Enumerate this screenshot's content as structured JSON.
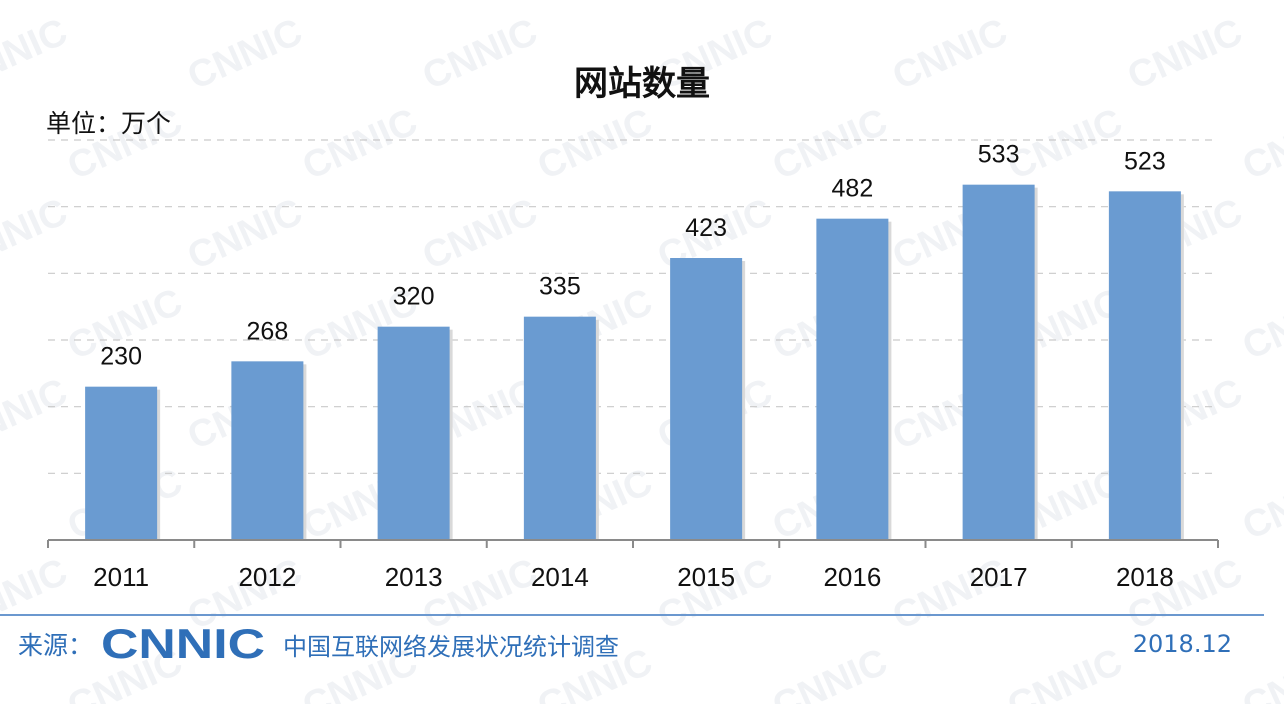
{
  "chart_data": {
    "type": "bar",
    "title": "网站数量",
    "unit_label": "单位：万个",
    "categories": [
      "2011",
      "2012",
      "2013",
      "2014",
      "2015",
      "2016",
      "2017",
      "2018"
    ],
    "values": [
      230,
      268,
      320,
      335,
      423,
      482,
      533,
      523
    ],
    "ylim": [
      0,
      600
    ],
    "grid": true,
    "bar_color": "#6a9bd1"
  },
  "footer": {
    "source_label": "来源：",
    "logo_text": "CNNIC",
    "organization": "中国互联网络发展状况统计调查",
    "date": "2018.12"
  },
  "colors": {
    "accent": "#2f6fb8",
    "rule": "#6b98cf"
  },
  "watermark": {
    "text": "CNNIC"
  }
}
